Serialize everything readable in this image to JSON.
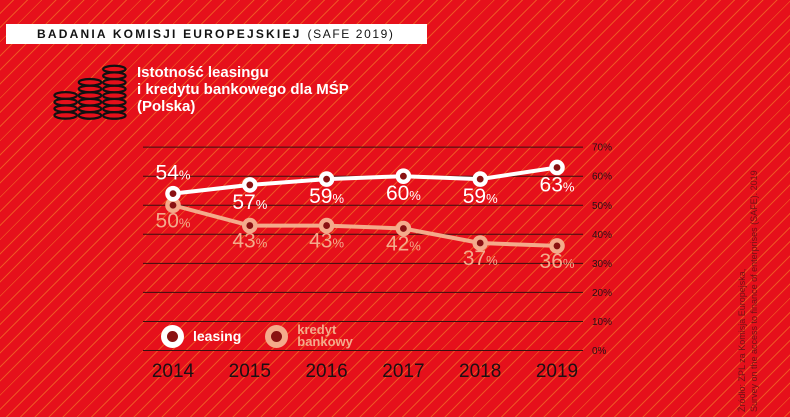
{
  "banner": {
    "title_bold": "BADANIA KOMISJI EUROPEJSKIEJ",
    "title_light": "(SAFE 2019)"
  },
  "header": {
    "icon": "coins-icon",
    "title_lines": [
      "Istotność leasingu",
      "i kredytu bankowego dla MŚP",
      "(Polska)"
    ]
  },
  "legend": {
    "items": [
      {
        "label_lines": [
          "leasing"
        ],
        "color": "#ffffff"
      },
      {
        "label_lines": [
          "kredyt",
          "bankowy"
        ],
        "color": "#f4aa8b"
      }
    ]
  },
  "source_note": {
    "lines": [
      "Źródło: ZPL za Komisja Europejska,",
      "Survey on the access to finance of enterprises (SAFE). 2019"
    ]
  },
  "colors": {
    "background": "#e6101b",
    "stripe": "rgba(245,150,40,0.5)",
    "banner_bg": "#ffffff",
    "banner_text": "#131313",
    "grid": "#38100f",
    "axis_text": "#231417",
    "year_text": "#1c1113",
    "leasing": "#ffffff",
    "kredyt": "#f4aa8b",
    "marker_hole": "#8a1112",
    "source_text": "#701215"
  },
  "chart_data": {
    "type": "line",
    "title": "Istotność leasingu i kredytu bankowego dla MŚP (Polska)",
    "categories": [
      "2014",
      "2015",
      "2016",
      "2017",
      "2018",
      "2019"
    ],
    "series": [
      {
        "name": "leasing",
        "color_key": "leasing",
        "values": [
          54,
          57,
          59,
          60,
          59,
          63
        ]
      },
      {
        "name": "kredyt bankowy",
        "color_key": "kredyt",
        "values": [
          50,
          43,
          43,
          42,
          37,
          36
        ]
      }
    ],
    "ylim": [
      0,
      70
    ],
    "ytick_step": 10,
    "ytick_labels": [
      "0%",
      "10%",
      "20%",
      "30%",
      "40%",
      "50%",
      "60%",
      "70%"
    ],
    "grid": true,
    "unit": "%",
    "legend_position": "bottom-left"
  }
}
